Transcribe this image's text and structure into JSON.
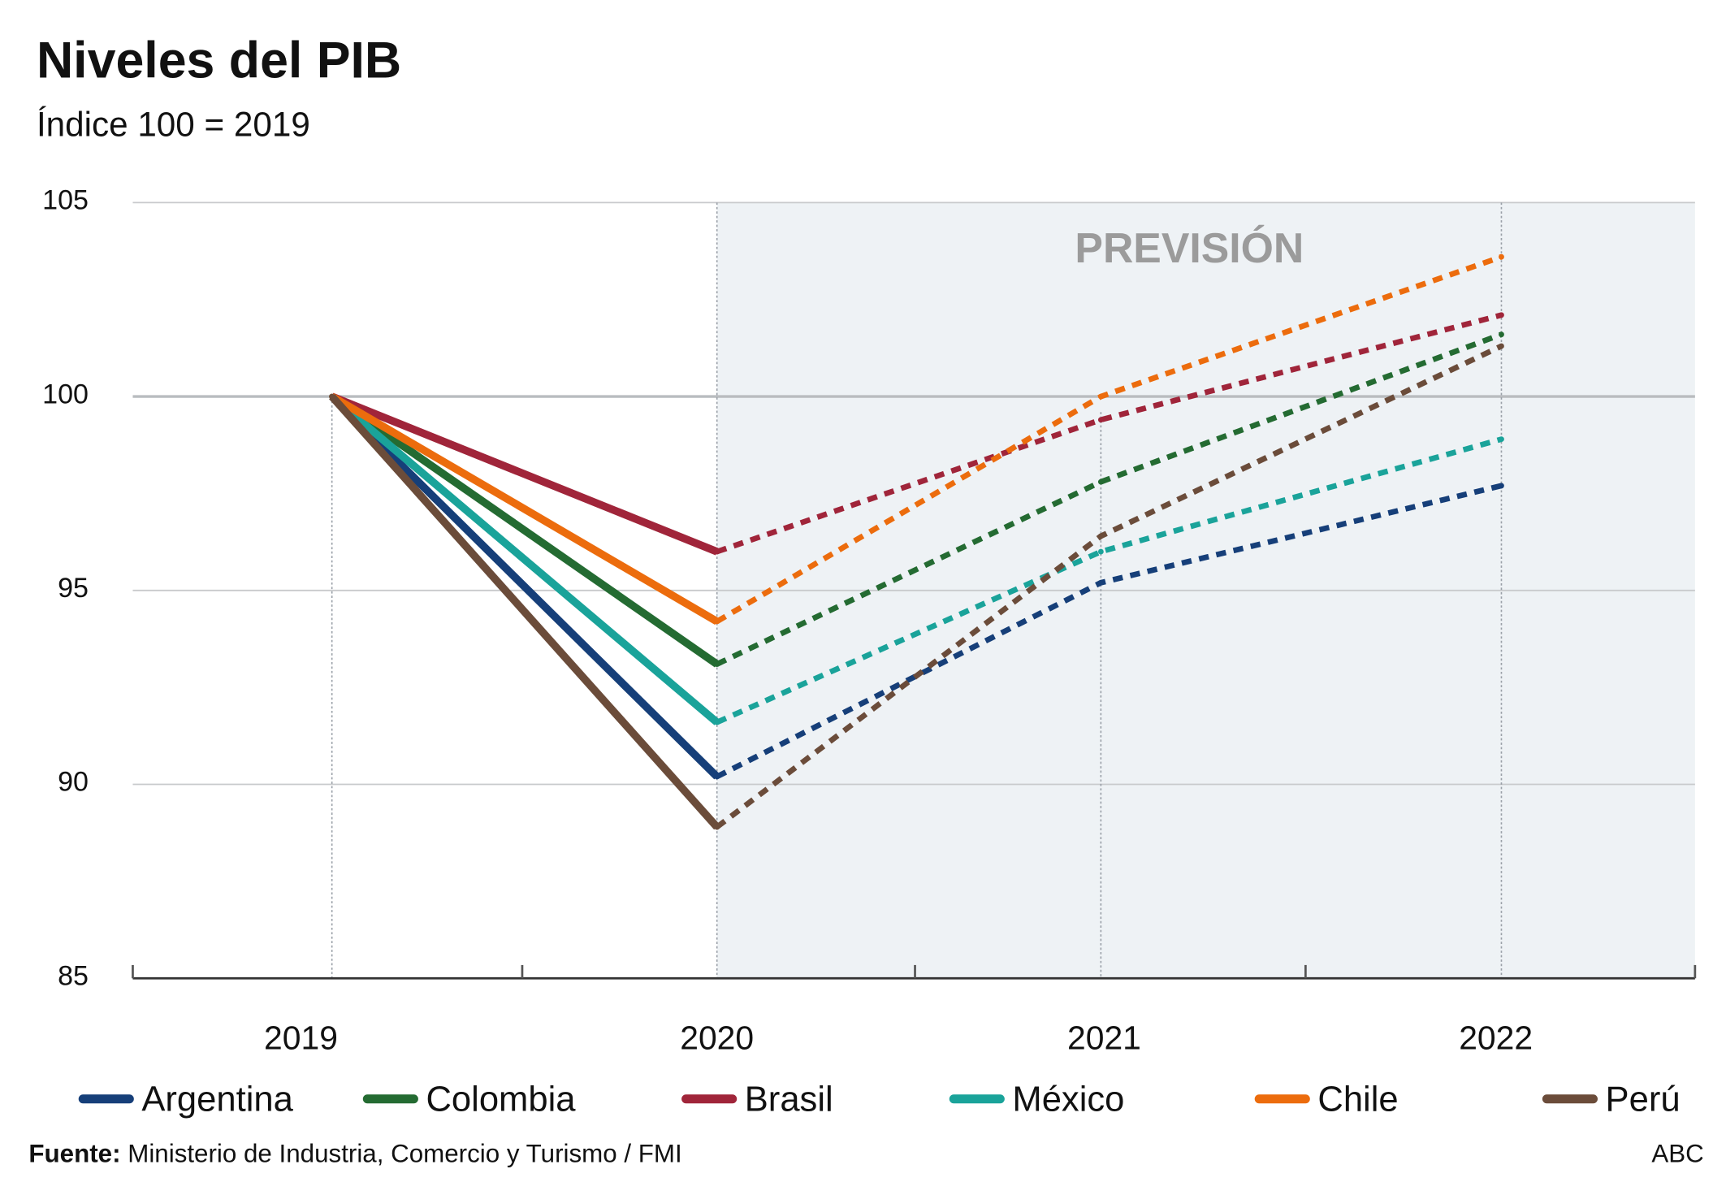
{
  "chart_data": {
    "type": "line",
    "title": "Niveles del PIB",
    "subtitle": "Índice 100 = 2019",
    "annotation": "PREVISIÓN",
    "forecast_from": "2020",
    "categories": [
      "2019",
      "2020",
      "2021",
      "2022"
    ],
    "ylim": [
      85,
      105
    ],
    "yticks": [
      "105",
      "100",
      "95",
      "90",
      "85"
    ],
    "grid": true,
    "legend_position": "bottom",
    "series": [
      {
        "name": "Argentina",
        "color": "#163f79",
        "values": [
          100,
          90.2,
          95.2,
          97.7
        ]
      },
      {
        "name": "Colombia",
        "color": "#246b32",
        "values": [
          100,
          93.1,
          97.8,
          101.6
        ]
      },
      {
        "name": "Brasil",
        "color": "#a0253a",
        "values": [
          100,
          96.0,
          99.4,
          102.1
        ]
      },
      {
        "name": "México",
        "color": "#1aa39a",
        "values": [
          100,
          91.6,
          96.0,
          98.9
        ]
      },
      {
        "name": "Chile",
        "color": "#ec6c0d",
        "values": [
          100,
          94.2,
          100.0,
          103.6
        ]
      },
      {
        "name": "Perú",
        "color": "#6b4c3a",
        "values": [
          100,
          88.9,
          96.4,
          101.3
        ]
      }
    ]
  },
  "footer": {
    "source_label": "Fuente:",
    "source_text": "Ministerio de Industria, Comercio y Turismo / FMI",
    "brand": "ABC"
  }
}
